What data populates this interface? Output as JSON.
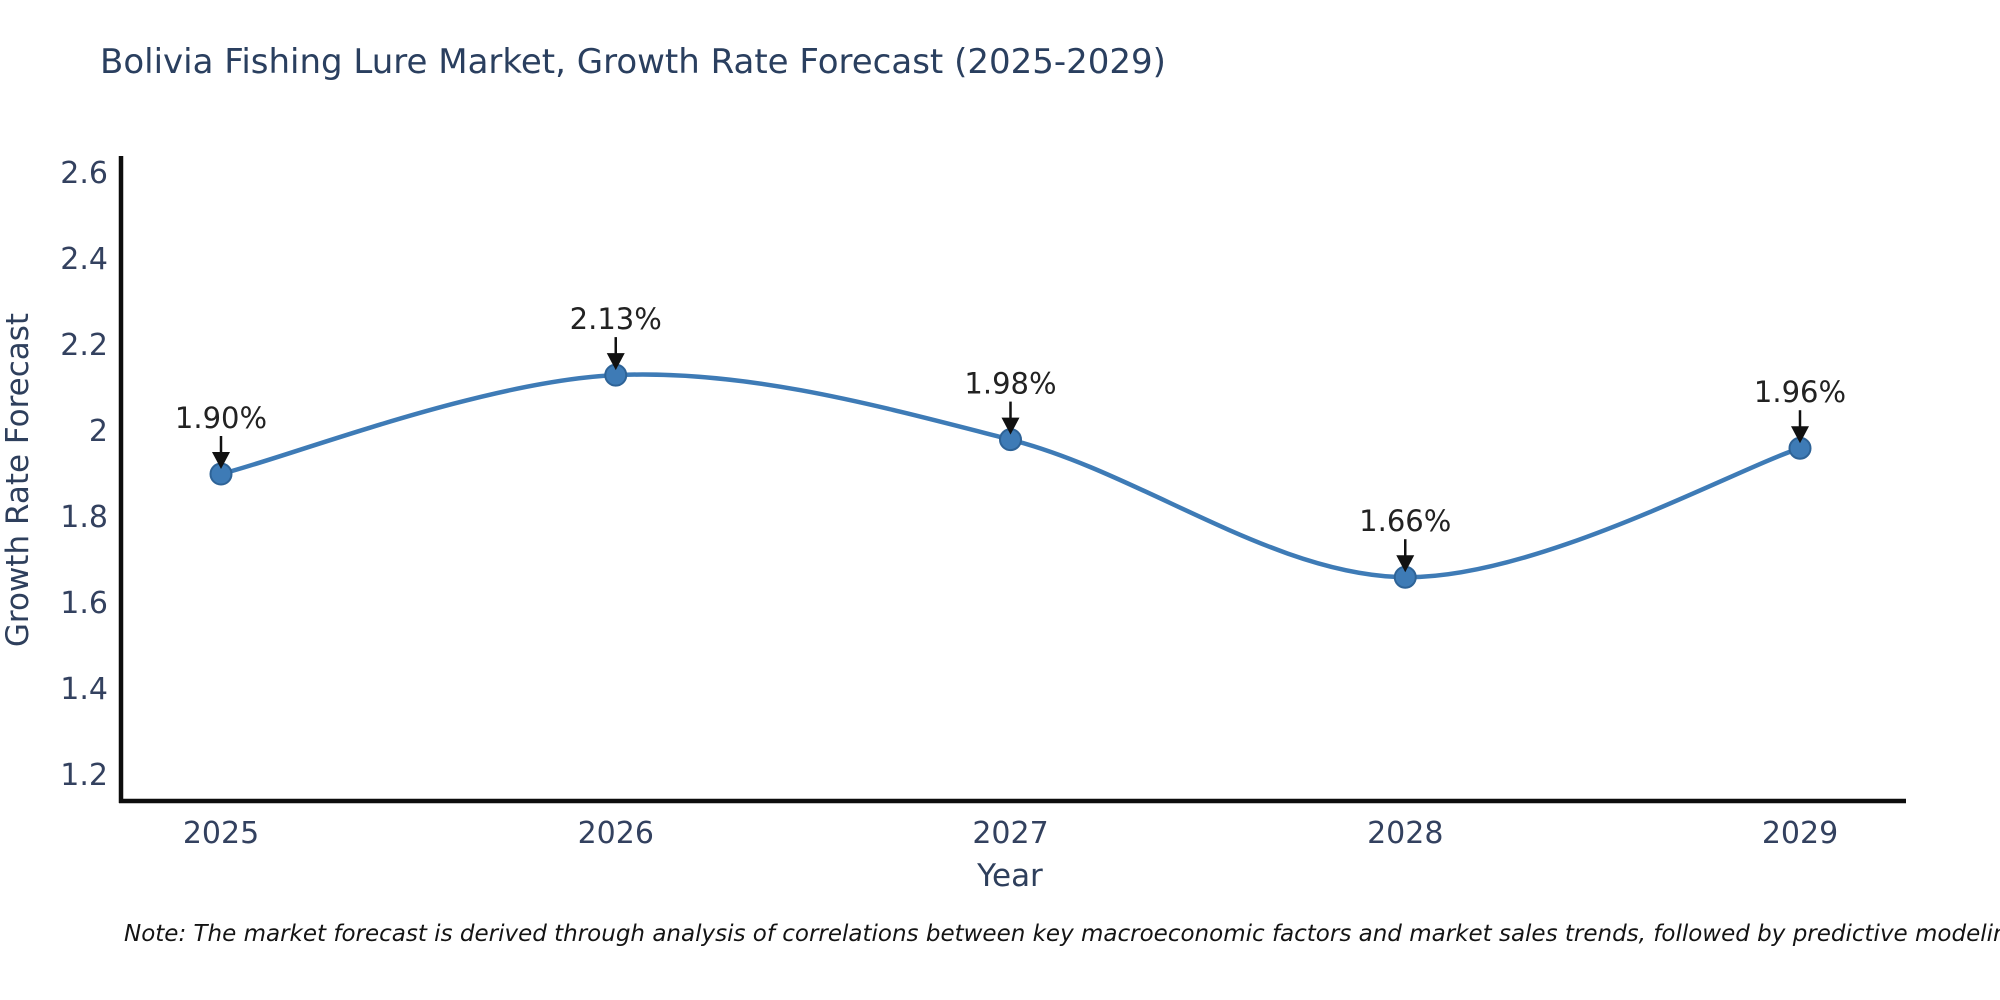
{
  "page": {
    "background": "#ffffff"
  },
  "chart_data": {
    "type": "line",
    "title": "Bolivia Fishing Lure Market, Growth Rate Forecast (2025-2029)",
    "xlabel": "Year",
    "ylabel": "Growth Rate Forecast",
    "x": [
      2025,
      2026,
      2027,
      2028,
      2029
    ],
    "series": [
      {
        "name": "Growth Rate Forecast",
        "values": [
          1.9,
          2.13,
          1.98,
          1.66,
          1.96
        ]
      }
    ],
    "point_labels": [
      "1.90%",
      "2.13%",
      "1.98%",
      "1.66%",
      "1.96%"
    ],
    "x_tick_labels": [
      "2025",
      "2026",
      "2027",
      "2028",
      "2029"
    ],
    "y_tick_values": [
      1.2,
      1.4,
      1.6,
      1.8,
      2.0,
      2.2,
      2.4,
      2.6
    ],
    "y_tick_labels": [
      "1.2",
      "1.4",
      "1.6",
      "1.8",
      "2",
      "2.2",
      "2.4",
      "2.6"
    ],
    "xlim": [
      2024.73,
      2029.27
    ],
    "ylim": [
      1.14,
      2.64
    ],
    "grid": false,
    "legend": "none",
    "curve": "smooth-spline",
    "marker": "circle",
    "annotation_arrow": "down-arrow",
    "style": {
      "line_color": "#3e7bb6",
      "marker_color": "#3e7bb6",
      "marker_edge_color": "#2e6397",
      "axis_color": "#0d0d0d",
      "title_color": "#2a3f5f",
      "tick_color": "#33415f",
      "annotation_text_color": "#222222",
      "annotation_arrow_color": "#111111"
    }
  },
  "footnote": {
    "text": "Note: The market forecast is derived through analysis of correlations between key macroeconomic factors and market sales trends, followed by predictive modeling to project future sales"
  }
}
